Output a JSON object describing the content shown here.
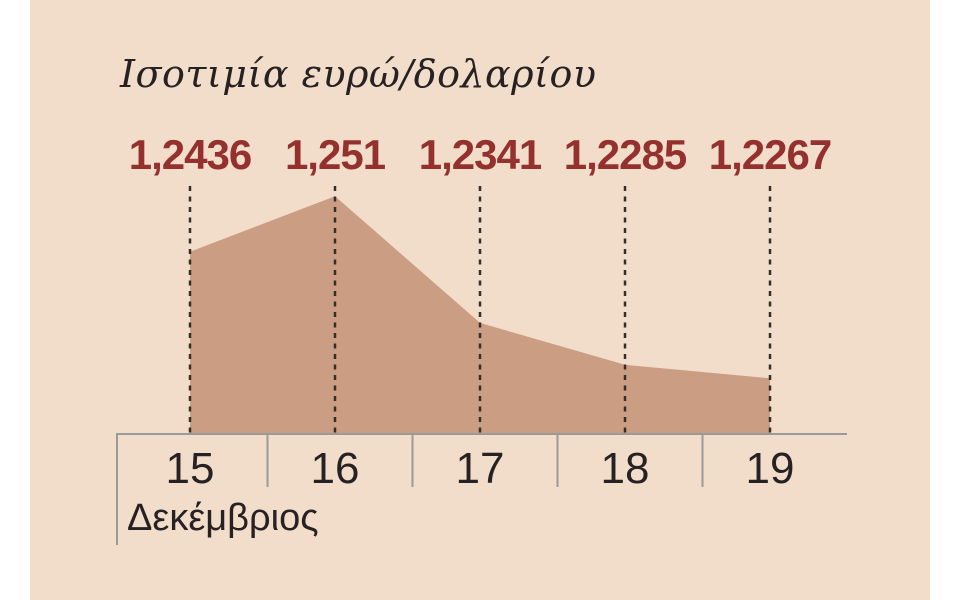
{
  "title": "Ισοτιμία ευρώ/δολαρίου",
  "chart_data": {
    "type": "area",
    "title": "Ισοτιμία ευρώ/δολαρίου",
    "x": [
      15,
      16,
      17,
      18,
      19
    ],
    "values": [
      1.2436,
      1.251,
      1.2341,
      1.2285,
      1.2267
    ],
    "value_labels": [
      "1,2436",
      "1,251",
      "1,2341",
      "1,2285",
      "1,2267"
    ],
    "xlabel": "Δεκέμβριος",
    "ylabel": "",
    "ylim": [
      1.2194,
      1.2545
    ],
    "grid": "vertical dotted lines at each data point",
    "legend": "none"
  },
  "colors": {
    "page": "#ffffff",
    "background": "#f2dcca",
    "area_fill": "#cb9e84",
    "value_text": "#94312e",
    "axis": "#9a9a9a",
    "dotted_line": "#33302c",
    "text": "#262122"
  }
}
